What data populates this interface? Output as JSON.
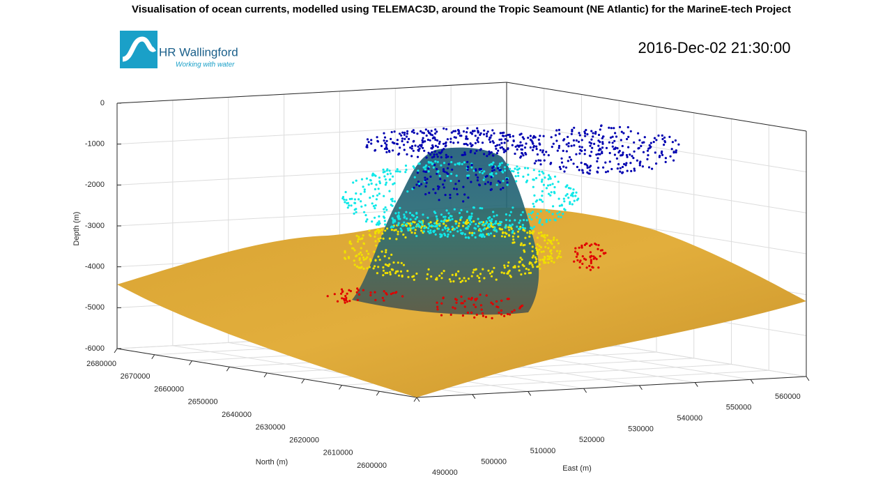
{
  "chart_data": {
    "type": "scatter3d",
    "title": "Visualisation of ocean currents, modelled using TELEMAC3D, around the Tropic Seamount (NE Atlantic) for the MarineE-tech Project",
    "annotation": "2016-Dec-02 21:30:00",
    "logo": {
      "name": "HR Wallingford",
      "tagline": "Working with water"
    },
    "xlabel": "East (m)",
    "ylabel": "North (m)",
    "zlabel": "Depth (m)",
    "xlim": [
      490000,
      560000
    ],
    "xticks": [
      490000,
      500000,
      510000,
      520000,
      530000,
      540000,
      550000,
      560000
    ],
    "ylim": [
      2600000,
      2680000
    ],
    "yticks": [
      2600000,
      2610000,
      2620000,
      2630000,
      2640000,
      2650000,
      2660000,
      2670000,
      2680000
    ],
    "zlim": [
      -6000,
      0
    ],
    "zticks": [
      -6000,
      -5000,
      -4000,
      -3000,
      -2000,
      -1000,
      0
    ],
    "grid": true
  }
}
